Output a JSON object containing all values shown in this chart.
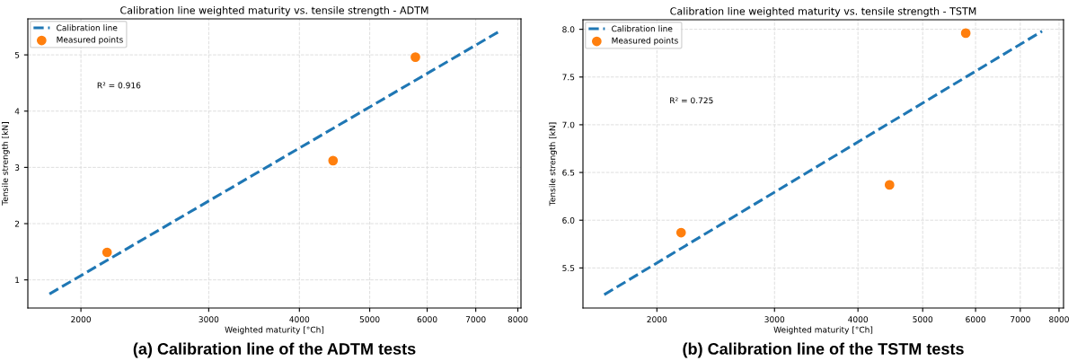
{
  "chart_data": [
    {
      "type": "scatter",
      "title": "Calibration line weighted maturity vs. tensile strength - ADTM",
      "xlabel": "Weighted maturity [°Ch]",
      "ylabel": "Tensile strength [kN]",
      "log": "x",
      "grid": true,
      "legend": "top left",
      "xlim": [
        1690,
        8080
      ],
      "ylim": [
        0.5,
        5.64
      ],
      "xticks": [
        2000,
        3000,
        4000,
        5000,
        6000,
        7000,
        8000
      ],
      "yticks": [
        1,
        2,
        3,
        4,
        5
      ],
      "annotations": [
        "R² = 0.916",
        "(a) Calibration line of the ADTM tests"
      ],
      "series": [
        {
          "name": "Calibration line",
          "type": "line",
          "line_style": "dashed",
          "marker": "none",
          "color": "#1f77b4",
          "x": [
            1810,
            7525
          ],
          "values": [
            0.75,
            5.41
          ]
        },
        {
          "name": "Measured points",
          "marker": "circle",
          "color": "#ff7f0e",
          "x": [
            2173,
            4451,
            5780
          ],
          "values": [
            1.49,
            3.12,
            4.96
          ]
        }
      ]
    },
    {
      "type": "scatter",
      "title": "Calibration line weighted maturity vs. tensile strength - TSTM",
      "xlabel": "Weighted maturity [°Ch]",
      "ylabel": "Tensile strength [kN]",
      "log": "x",
      "grid": true,
      "legend": "top left",
      "xlim": [
        1550,
        8125
      ],
      "ylim": [
        5.08,
        8.1
      ],
      "xticks": [
        2000,
        3000,
        4000,
        5000,
        6000,
        7000,
        8000
      ],
      "yticks": [
        {
          "value": 5.5,
          "label": "5.5"
        },
        {
          "value": 6.0,
          "label": "6.0"
        },
        {
          "value": 6.5,
          "label": "6.5"
        },
        {
          "value": 7.0,
          "label": "7.0"
        },
        {
          "value": 7.5,
          "label": "7.5"
        },
        {
          "value": 8.0,
          "label": "8.0"
        }
      ],
      "annotations": [
        "R² = 0.725",
        "(b) Calibration line of the TSTM tests"
      ],
      "series": [
        {
          "name": "Calibration line",
          "type": "line",
          "line_style": "dashed",
          "marker": "none",
          "color": "#1f77b4",
          "x": [
            1668,
            7545
          ],
          "values": [
            5.22,
            7.98
          ]
        },
        {
          "name": "Measured points",
          "marker": "circle",
          "color": "#ff7f0e",
          "x": [
            2174,
            4460,
            5800
          ],
          "values": [
            5.87,
            6.37,
            7.96
          ]
        }
      ]
    }
  ]
}
